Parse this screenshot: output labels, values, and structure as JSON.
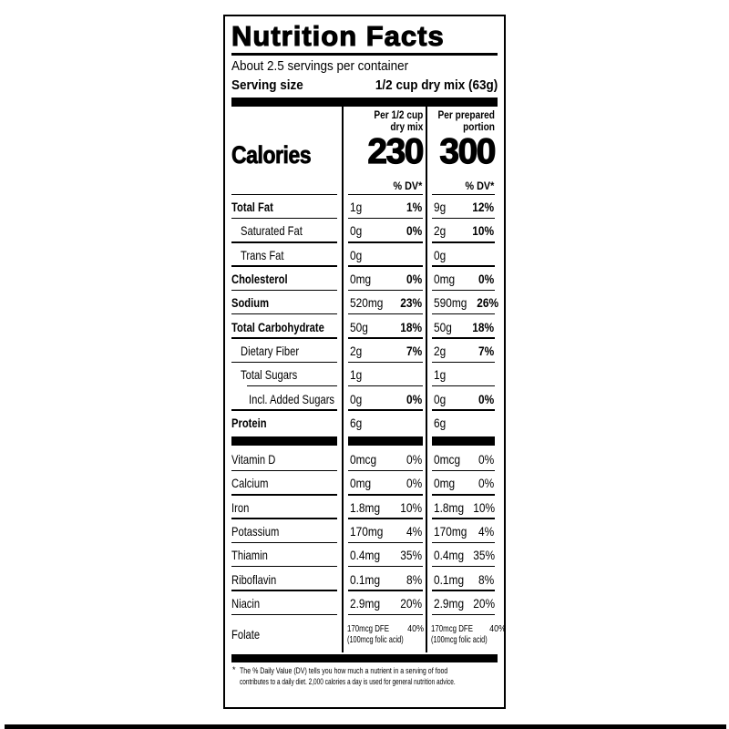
{
  "label": {
    "title": "Nutrition Facts",
    "servings_per_container": "About 2.5 servings per container",
    "serving_size": {
      "label": "Serving size",
      "value": "1/2 cup dry mix (63g)"
    },
    "calories_label": "Calories",
    "columns": [
      {
        "header_line1": "Per 1/2 cup",
        "header_line2": "dry mix",
        "calories": "230",
        "dv_header": "% DV*"
      },
      {
        "header_line1": "Per prepared",
        "header_line2": "portion",
        "calories": "300",
        "dv_header": "% DV*"
      }
    ],
    "nutrients": [
      {
        "name": "Total Fat",
        "bold": true,
        "indent": 0,
        "cols": [
          {
            "amt": "1g",
            "pct": "1%"
          },
          {
            "amt": "9g",
            "pct": "12%"
          }
        ]
      },
      {
        "name": "Saturated Fat",
        "bold": false,
        "indent": 1,
        "cols": [
          {
            "amt": "0g",
            "pct": "0%"
          },
          {
            "amt": "2g",
            "pct": "10%"
          }
        ]
      },
      {
        "name": "Trans Fat",
        "bold": false,
        "indent": 1,
        "cols": [
          {
            "amt": "0g",
            "pct": ""
          },
          {
            "amt": "0g",
            "pct": ""
          }
        ]
      },
      {
        "name": "Cholesterol",
        "bold": true,
        "indent": 0,
        "cols": [
          {
            "amt": "0mg",
            "pct": "0%"
          },
          {
            "amt": "0mg",
            "pct": "0%"
          }
        ]
      },
      {
        "name": "Sodium",
        "bold": true,
        "indent": 0,
        "cols": [
          {
            "amt": "520mg",
            "pct": "23%"
          },
          {
            "amt": "590mg",
            "pct": "26%"
          }
        ]
      },
      {
        "name": "Total Carbohydrate",
        "bold": true,
        "indent": 0,
        "cols": [
          {
            "amt": "50g",
            "pct": "18%"
          },
          {
            "amt": "50g",
            "pct": "18%"
          }
        ]
      },
      {
        "name": "Dietary Fiber",
        "bold": false,
        "indent": 1,
        "cols": [
          {
            "amt": "2g",
            "pct": "7%"
          },
          {
            "amt": "2g",
            "pct": "7%"
          }
        ]
      },
      {
        "name": "Total Sugars",
        "bold": false,
        "indent": 1,
        "indent_separator_below": true,
        "cols": [
          {
            "amt": "1g",
            "pct": ""
          },
          {
            "amt": "1g",
            "pct": ""
          }
        ]
      },
      {
        "name": "Incl. Added Sugars",
        "bold": false,
        "indent": 2,
        "cols": [
          {
            "amt": "0g",
            "pct": "0%"
          },
          {
            "amt": "0g",
            "pct": "0%"
          }
        ]
      },
      {
        "name": "Protein",
        "bold": true,
        "indent": 0,
        "no_line": true,
        "cols": [
          {
            "amt": "6g",
            "pct": ""
          },
          {
            "amt": "6g",
            "pct": ""
          }
        ]
      }
    ],
    "vitamins": [
      {
        "name": "Vitamin D",
        "cols": [
          {
            "amt": "0mcg",
            "pct": "0%"
          },
          {
            "amt": "0mcg",
            "pct": "0%"
          }
        ]
      },
      {
        "name": "Calcium",
        "cols": [
          {
            "amt": "0mg",
            "pct": "0%"
          },
          {
            "amt": "0mg",
            "pct": "0%"
          }
        ]
      },
      {
        "name": "Iron",
        "cols": [
          {
            "amt": "1.8mg",
            "pct": "10%"
          },
          {
            "amt": "1.8mg",
            "pct": "10%"
          }
        ]
      },
      {
        "name": "Potassium",
        "cols": [
          {
            "amt": "170mg",
            "pct": "4%"
          },
          {
            "amt": "170mg",
            "pct": "4%"
          }
        ]
      },
      {
        "name": "Thiamin",
        "cols": [
          {
            "amt": "0.4mg",
            "pct": "35%"
          },
          {
            "amt": "0.4mg",
            "pct": "35%"
          }
        ]
      },
      {
        "name": "Riboflavin",
        "cols": [
          {
            "amt": "0.1mg",
            "pct": "8%"
          },
          {
            "amt": "0.1mg",
            "pct": "8%"
          }
        ]
      },
      {
        "name": "Niacin",
        "cols": [
          {
            "amt": "2.9mg",
            "pct": "20%"
          },
          {
            "amt": "2.9mg",
            "pct": "20%"
          }
        ]
      },
      {
        "name": "Folate",
        "no_line": true,
        "two_line": true,
        "cols": [
          {
            "amt": "170mcg DFE",
            "pct": "40%",
            "line2": "(100mcg folic acid)"
          },
          {
            "amt": "170mcg DFE",
            "pct": "40%",
            "line2": "(100mcg folic acid)"
          }
        ]
      }
    ],
    "footnote": {
      "mark": "*",
      "line1": "The % Daily Value (DV) tells you how much a nutrient in a serving of food",
      "line2": "contributes to a daily diet. 2,000 calories a day is used for general nutrition advice."
    },
    "colors": {
      "ink": "#000000",
      "paper": "#ffffff"
    }
  }
}
